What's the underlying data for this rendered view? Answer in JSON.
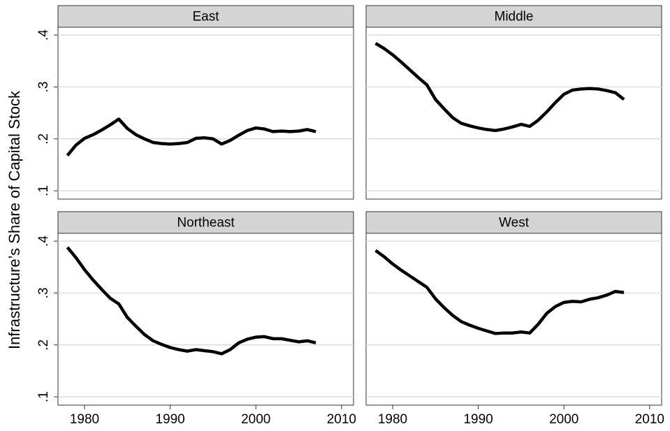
{
  "chart_data": {
    "type": "line",
    "ylabel": "Infrastructure’s Share of Capital Stock",
    "x": [
      1978,
      1979,
      1980,
      1981,
      1982,
      1983,
      1984,
      1985,
      1986,
      1987,
      1988,
      1989,
      1990,
      1991,
      1992,
      1993,
      1994,
      1995,
      1996,
      1997,
      1998,
      1999,
      2000,
      2001,
      2002,
      2003,
      2004,
      2005,
      2006,
      2007
    ],
    "xlim": [
      1976.9,
      2011.4
    ],
    "xticks": [
      1980,
      1990,
      2000,
      2010
    ],
    "ylim": [
      0.084,
      0.415
    ],
    "yticks": [
      {
        "value": 0.1,
        "label": ".1"
      },
      {
        "value": 0.2,
        "label": ".2"
      },
      {
        "value": 0.3,
        "label": ".3"
      },
      {
        "value": 0.4,
        "label": ".4"
      }
    ],
    "grid": true,
    "color": "#000000",
    "panels": [
      {
        "title": "East",
        "values": [
          0.168,
          0.188,
          0.201,
          0.208,
          0.217,
          0.227,
          0.238,
          0.22,
          0.208,
          0.2,
          0.193,
          0.191,
          0.19,
          0.191,
          0.193,
          0.201,
          0.202,
          0.2,
          0.19,
          0.197,
          0.207,
          0.216,
          0.221,
          0.219,
          0.214,
          0.215,
          0.214,
          0.215,
          0.218,
          0.214
        ]
      },
      {
        "title": "Middle",
        "values": [
          0.384,
          0.374,
          0.362,
          0.348,
          0.333,
          0.318,
          0.304,
          0.276,
          0.258,
          0.241,
          0.23,
          0.225,
          0.221,
          0.218,
          0.216,
          0.219,
          0.223,
          0.228,
          0.224,
          0.236,
          0.252,
          0.27,
          0.286,
          0.294,
          0.296,
          0.297,
          0.296,
          0.293,
          0.289,
          0.276
        ]
      },
      {
        "title": "Northeast",
        "values": [
          0.388,
          0.368,
          0.345,
          0.325,
          0.307,
          0.29,
          0.279,
          0.253,
          0.236,
          0.22,
          0.208,
          0.201,
          0.195,
          0.191,
          0.188,
          0.191,
          0.189,
          0.187,
          0.183,
          0.191,
          0.204,
          0.211,
          0.215,
          0.216,
          0.212,
          0.212,
          0.209,
          0.206,
          0.208,
          0.204
        ]
      },
      {
        "title": "West",
        "values": [
          0.382,
          0.37,
          0.356,
          0.344,
          0.333,
          0.322,
          0.311,
          0.289,
          0.272,
          0.257,
          0.245,
          0.238,
          0.232,
          0.227,
          0.222,
          0.223,
          0.223,
          0.225,
          0.223,
          0.24,
          0.261,
          0.274,
          0.282,
          0.284,
          0.283,
          0.288,
          0.291,
          0.296,
          0.303,
          0.301
        ]
      }
    ]
  }
}
